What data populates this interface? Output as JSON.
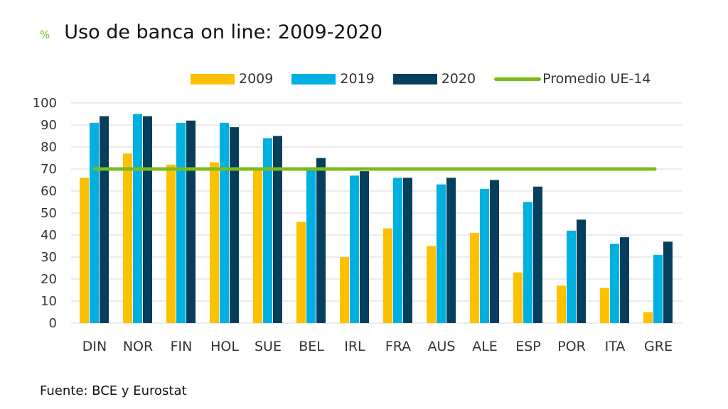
{
  "chart_data": {
    "type": "bar",
    "title_prefix": "%",
    "title": "Uso de banca on line: 2009-2020",
    "categories": [
      "DIN",
      "NOR",
      "FIN",
      "HOL",
      "SUE",
      "BEL",
      "IRL",
      "FRA",
      "AUS",
      "ALE",
      "ESP",
      "POR",
      "ITA",
      "GRE"
    ],
    "series": [
      {
        "name": "2009",
        "color": "#ffc000",
        "values": [
          66,
          77,
          72,
          73,
          70,
          46,
          30,
          43,
          35,
          41,
          23,
          17,
          16,
          5
        ]
      },
      {
        "name": "2019",
        "color": "#00b0e0",
        "values": [
          91,
          95,
          91,
          91,
          84,
          70,
          67,
          66,
          63,
          61,
          55,
          42,
          36,
          31
        ]
      },
      {
        "name": "2020",
        "color": "#063f5c",
        "values": [
          94,
          94,
          92,
          89,
          85,
          75,
          69,
          66,
          66,
          65,
          62,
          47,
          39,
          37
        ]
      }
    ],
    "reference_line": {
      "name": "Promedio UE-14",
      "value": 70,
      "color": "#7cbb1e"
    },
    "ylim": [
      0,
      100
    ],
    "yticks": [
      0,
      10,
      20,
      30,
      40,
      50,
      60,
      70,
      80,
      90,
      100
    ],
    "grid": true,
    "legend_position": "top"
  },
  "source": "Fuente: BCE y Eurostat"
}
